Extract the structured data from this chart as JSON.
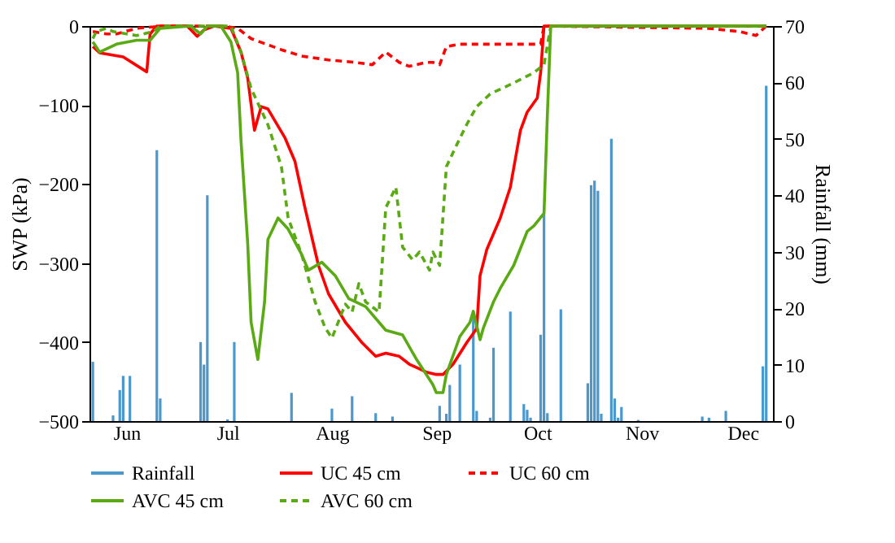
{
  "chart_data": {
    "type": "line",
    "ylabel": "SWP (kPa)",
    "y2label": "Rainfall (mm)",
    "xlim": [
      "--05-21",
      "--12-10"
    ],
    "xticks": [
      {
        "value": "--06-01",
        "label": "Jun"
      },
      {
        "value": "--07-01",
        "label": "Jul"
      },
      {
        "value": "--08-01",
        "label": "Aug"
      },
      {
        "value": "--09-01",
        "label": "Sep"
      },
      {
        "value": "--10-01",
        "label": "Oct"
      },
      {
        "value": "--11-01",
        "label": "Nov"
      },
      {
        "value": "--12-01",
        "label": "Dec"
      }
    ],
    "ylim": [
      -500,
      0
    ],
    "yticks": [
      -500,
      -400,
      -300,
      -200,
      -100,
      0
    ],
    "y2lim": [
      0,
      70
    ],
    "y2ticks": [
      0,
      10,
      20,
      30,
      40,
      50,
      60,
      70
    ],
    "legend": "bottom",
    "grid": false,
    "series": [
      {
        "name": "Rainfall",
        "type": "bar",
        "axis": "y2",
        "color": "#4a98cc",
        "x": [
          "--05-22",
          "--05-28",
          "--05-30",
          "--05-31",
          "--06-02",
          "--06-10",
          "--06-11",
          "--06-23",
          "--06-24",
          "--06-25",
          "--07-01",
          "--07-03",
          "--07-20",
          "--08-01",
          "--08-07",
          "--08-14",
          "--08-19",
          "--09-02",
          "--09-04",
          "--09-05",
          "--09-08",
          "--09-12",
          "--09-13",
          "--09-17",
          "--09-18",
          "--09-23",
          "--09-27",
          "--09-28",
          "--09-29",
          "--10-02",
          "--10-03",
          "--10-04",
          "--10-08",
          "--10-16",
          "--10-17",
          "--10-18",
          "--10-19",
          "--10-20",
          "--10-23",
          "--10-24",
          "--10-25",
          "--10-26",
          "--10-31",
          "--11-19",
          "--11-21",
          "--11-26",
          "--12-07",
          "--12-08"
        ],
        "values": [
          10.5,
          1,
          5.5,
          8,
          8,
          48,
          4,
          14,
          10,
          40,
          0.3,
          14,
          5,
          2.2,
          4.4,
          1.4,
          0.8,
          2.7,
          1.3,
          6.4,
          10,
          18.7,
          1.8,
          0.6,
          13,
          19.4,
          3,
          2,
          0.6,
          15.3,
          36.7,
          1.4,
          19.8,
          6.7,
          41.8,
          42.6,
          40.8,
          1.3,
          50,
          4,
          0.6,
          2.5,
          0.2,
          0.8,
          0.6,
          1.8,
          9.7,
          59.4
        ]
      },
      {
        "name": "UC 45 cm",
        "type": "line",
        "line_style": "solid",
        "color": "#ff0000",
        "x": [
          "--05-22",
          "--05-24",
          "--05-31",
          "--06-07",
          "--06-08",
          "--06-10",
          "--06-19",
          "--06-22",
          "--06-24",
          "--06-27",
          "--07-02",
          "--07-05",
          "--07-07",
          "--07-09",
          "--07-11",
          "--07-13",
          "--07-18",
          "--07-21",
          "--07-24",
          "--07-28",
          "--07-31",
          "--08-05",
          "--08-10",
          "--08-14",
          "--08-17",
          "--08-21",
          "--08-24",
          "--08-29",
          "--09-01",
          "--09-03",
          "--09-06",
          "--09-10",
          "--09-13",
          "--09-14",
          "--09-16",
          "--09-20",
          "--09-23",
          "--09-26",
          "--09-28",
          "--10-01",
          "--10-02",
          "--10-03",
          "--10-14",
          "--12-08"
        ],
        "values": [
          -26,
          -34,
          -39,
          -58,
          -10,
          0,
          0,
          -13,
          -5,
          0,
          -3,
          -33,
          -66,
          -132,
          -102,
          -105,
          -141,
          -171,
          -230,
          -303,
          -339,
          -375,
          -401,
          -418,
          -414,
          -418,
          -428,
          -438,
          -441,
          -441,
          -428,
          -401,
          -383,
          -316,
          -283,
          -243,
          -204,
          -132,
          -109,
          -91,
          -59,
          0,
          0,
          0
        ]
      },
      {
        "name": "UC 60 cm",
        "type": "line",
        "line_style": "dashed",
        "color": "#ff0000",
        "x": [
          "--05-22",
          "--05-26",
          "--05-29",
          "--06-04",
          "--06-09",
          "--06-11",
          "--06-30",
          "--07-04",
          "--07-08",
          "--07-17",
          "--07-23",
          "--07-31",
          "--08-08",
          "--08-13",
          "--08-17",
          "--08-21",
          "--08-24",
          "--08-29",
          "--08-31",
          "--09-02",
          "--09-04",
          "--09-08",
          "--10-02",
          "--10-03",
          "--11-21",
          "--11-30",
          "--12-05",
          "--12-08"
        ],
        "values": [
          -7,
          -10,
          -10,
          -3,
          -1,
          0,
          0,
          -3,
          -16,
          -30,
          -38,
          -43,
          -46,
          -49,
          -33,
          -46,
          -51,
          -46,
          -46,
          -49,
          -26,
          -23,
          -23,
          0,
          -3,
          -7,
          -12,
          0
        ]
      },
      {
        "name": "AVC 45 cm",
        "type": "line",
        "line_style": "solid",
        "color": "#5aaa14",
        "x": [
          "--05-22",
          "--05-24",
          "--05-29",
          "--06-04",
          "--06-08",
          "--06-11",
          "--06-20",
          "--06-23",
          "--06-25",
          "--06-29",
          "--07-02",
          "--07-04",
          "--07-05",
          "--07-07",
          "--07-08",
          "--07-10",
          "--07-12",
          "--07-13",
          "--07-16",
          "--07-19",
          "--07-23",
          "--07-25",
          "--07-29",
          "--08-02",
          "--08-06",
          "--08-11",
          "--08-17",
          "--08-22",
          "--08-26",
          "--08-31",
          "--09-01",
          "--09-03",
          "--09-04",
          "--09-08",
          "--09-11",
          "--09-12",
          "--09-14",
          "--09-15",
          "--09-18",
          "--09-20",
          "--09-24",
          "--09-28",
          "--09-30",
          "--10-03",
          "--10-04",
          "--10-05",
          "--12-08"
        ],
        "values": [
          -20,
          -33,
          -23,
          -18,
          -18,
          -3,
          0,
          -10,
          0,
          0,
          -20,
          -59,
          -145,
          -276,
          -375,
          -422,
          -349,
          -270,
          -243,
          -257,
          -289,
          -309,
          -299,
          -316,
          -345,
          -355,
          -385,
          -391,
          -421,
          -454,
          -464,
          -464,
          -441,
          -393,
          -375,
          -361,
          -397,
          -382,
          -349,
          -332,
          -303,
          -260,
          -253,
          -237,
          -112,
          0,
          0
        ]
      },
      {
        "name": "AVC 60 cm",
        "type": "line",
        "line_style": "dashed",
        "color": "#5aaa14",
        "x": [
          "--05-22",
          "--05-23",
          "--05-26",
          "--05-28",
          "--06-01",
          "--06-04",
          "--06-09",
          "--06-11",
          "--07-02",
          "--07-05",
          "--07-08",
          "--07-13",
          "--07-17",
          "--07-19",
          "--07-23",
          "--07-27",
          "--07-30",
          "--08-01",
          "--08-05",
          "--08-07",
          "--08-09",
          "--08-11",
          "--08-15",
          "--08-17",
          "--08-20",
          "--08-22",
          "--08-25",
          "--08-27",
          "--08-30",
          "--08-31",
          "--09-02",
          "--09-04",
          "--09-07",
          "--09-10",
          "--09-13",
          "--09-17",
          "--09-24",
          "--09-30",
          "--10-03",
          "--10-05",
          "--12-08"
        ],
        "values": [
          -16,
          -7,
          -3,
          -7,
          -10,
          -12,
          -7,
          0,
          0,
          -33,
          -79,
          -125,
          -178,
          -243,
          -289,
          -349,
          -382,
          -395,
          -352,
          -362,
          -326,
          -349,
          -362,
          -230,
          -204,
          -280,
          -296,
          -286,
          -309,
          -286,
          -303,
          -178,
          -151,
          -125,
          -102,
          -86,
          -72,
          -59,
          -49,
          0,
          0
        ]
      }
    ]
  }
}
